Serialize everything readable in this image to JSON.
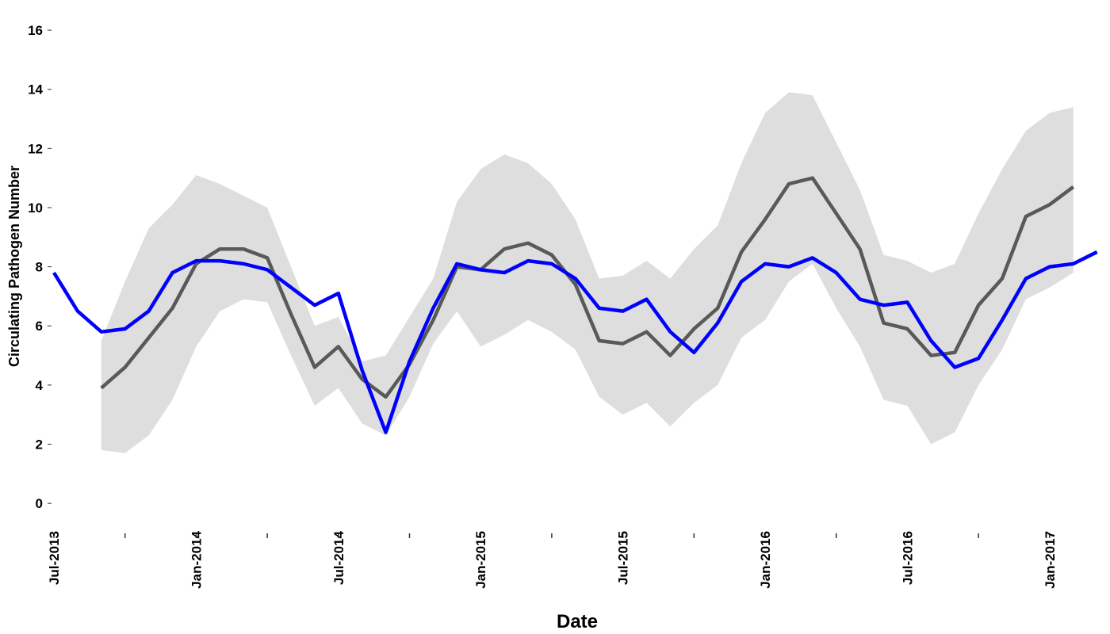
{
  "chart_data": {
    "type": "line",
    "x_label": "Date",
    "y_label": "Circulating Pathogen Number",
    "categories": [
      "Jul-2013",
      null,
      null,
      null,
      null,
      null,
      "Jan-2014",
      null,
      null,
      null,
      null,
      null,
      "Jul-2014",
      null,
      null,
      null,
      null,
      null,
      "Jan-2015",
      null,
      null,
      null,
      null,
      null,
      "Jul-2015",
      null,
      null,
      null,
      null,
      null,
      "Jan-2016",
      null,
      null,
      null,
      null,
      null,
      "Jul-2016",
      null,
      null,
      null,
      null,
      null,
      "Jan-2017",
      null,
      null
    ],
    "band": {
      "color": "#dedede",
      "low": [
        null,
        null,
        1.8,
        1.7,
        2.3,
        3.5,
        5.3,
        6.5,
        6.9,
        6.8,
        5.0,
        3.3,
        3.9,
        2.7,
        2.3,
        3.6,
        5.4,
        6.5,
        5.3,
        5.7,
        6.2,
        5.8,
        5.2,
        3.6,
        3.0,
        3.4,
        2.6,
        3.4,
        4.0,
        5.6,
        6.2,
        7.5,
        8.1,
        6.6,
        5.3,
        3.5,
        3.3,
        2.0,
        2.4,
        4.0,
        5.2,
        6.9,
        7.3,
        7.8,
        null
      ],
      "high": [
        null,
        null,
        5.5,
        7.5,
        9.3,
        10.1,
        11.1,
        10.8,
        10.4,
        10.0,
        8.0,
        6.0,
        6.3,
        4.8,
        5.0,
        6.3,
        7.6,
        10.2,
        11.3,
        11.8,
        11.5,
        10.8,
        9.6,
        7.6,
        7.7,
        8.2,
        7.6,
        8.6,
        9.4,
        11.5,
        13.2,
        13.9,
        13.8,
        12.2,
        10.6,
        8.4,
        8.2,
        7.8,
        8.1,
        9.8,
        11.3,
        12.6,
        13.2,
        13.4,
        null
      ]
    },
    "series": [
      {
        "color": "#595959",
        "values": [
          null,
          null,
          3.9,
          4.6,
          5.6,
          6.6,
          8.1,
          8.6,
          8.6,
          8.3,
          6.4,
          4.6,
          5.3,
          4.2,
          3.6,
          4.7,
          6.2,
          8.0,
          7.9,
          8.6,
          8.8,
          8.4,
          7.4,
          5.5,
          5.4,
          5.8,
          5.0,
          5.9,
          6.6,
          8.5,
          9.6,
          10.8,
          11.0,
          9.8,
          8.6,
          6.1,
          5.9,
          5.0,
          5.1,
          6.7,
          7.6,
          9.7,
          10.1,
          10.7,
          null
        ]
      },
      {
        "color": "#0000ff",
        "values": [
          7.8,
          6.5,
          5.8,
          5.9,
          6.5,
          7.8,
          8.2,
          8.2,
          8.1,
          7.9,
          7.3,
          6.7,
          7.1,
          4.5,
          2.4,
          4.8,
          6.6,
          8.1,
          7.9,
          7.8,
          8.2,
          8.1,
          7.6,
          6.6,
          6.5,
          6.9,
          5.8,
          5.1,
          6.1,
          7.5,
          8.1,
          8.0,
          8.3,
          7.8,
          6.9,
          6.7,
          6.8,
          5.5,
          4.6,
          4.9,
          6.2,
          7.6,
          8.0,
          8.1,
          8.5
        ]
      }
    ],
    "ylim": [
      -0.8,
      16.35
    ],
    "yticks": [
      0,
      2,
      4,
      6,
      8,
      10,
      12,
      14,
      16
    ]
  }
}
